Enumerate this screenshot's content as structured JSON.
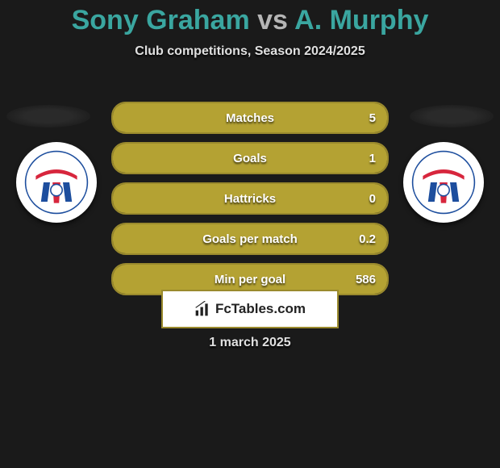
{
  "header": {
    "player1": "Sony Graham",
    "vs": "vs",
    "player2": "A. Murphy",
    "subtitle": "Club competitions, Season 2024/2025"
  },
  "colors": {
    "accent_teal": "#3aa6a0",
    "row_border": "#9a8a2d",
    "row_fill": "#b4a233",
    "background": "#1a1a1a",
    "text_light": "#e0e0e0",
    "white": "#ffffff"
  },
  "rows": [
    {
      "label": "Matches",
      "value": "5",
      "fill_pct": 100
    },
    {
      "label": "Goals",
      "value": "1",
      "fill_pct": 100
    },
    {
      "label": "Hattricks",
      "value": "0",
      "fill_pct": 100
    },
    {
      "label": "Goals per match",
      "value": "0.2",
      "fill_pct": 100
    },
    {
      "label": "Min per goal",
      "value": "586",
      "fill_pct": 100
    }
  ],
  "brand": {
    "text": "FcTables.com"
  },
  "date": "1 march 2025",
  "badge": {
    "ribbon_color": "#d7263d",
    "stripe_blue": "#1d4e9e",
    "stripe_red": "#d7263d"
  }
}
